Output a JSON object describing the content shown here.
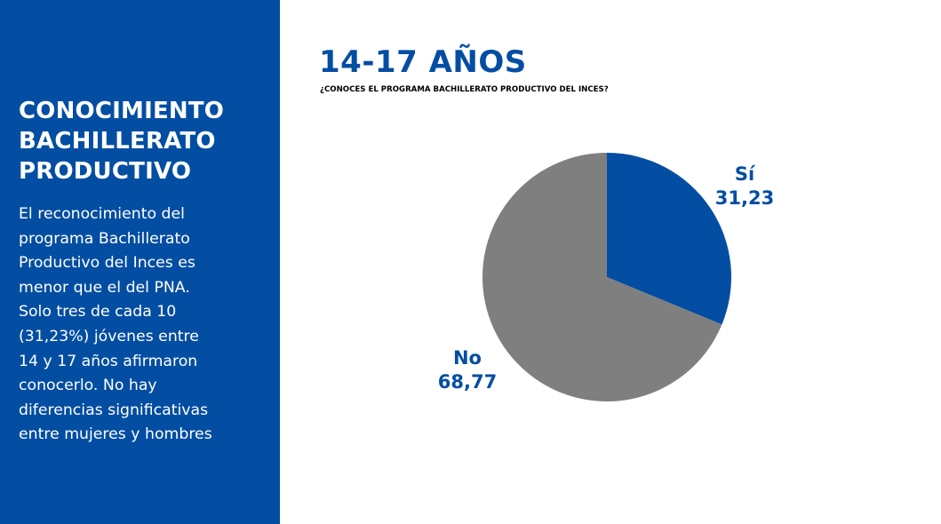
{
  "panel": {
    "title_lines": [
      "CONOCIMIENTO",
      "BACHILLERATO",
      "PRODUCTIVO"
    ],
    "body_lines": [
      "El reconocimiento del",
      "programa Bachillerato",
      "Productivo del Inces es",
      "menor que el del PNA.",
      "Solo tres de cada 10",
      "(31,23%) jóvenes entre",
      "14 y 17 años afirmaron",
      "conocerlo. No hay",
      "diferencias significativas",
      "entre mujeres y hombres"
    ]
  },
  "chart_data": {
    "type": "pie",
    "title": "14-17 AÑOS",
    "subtitle": "¿CONOCES EL PROGRAMA BACHILLERATO PRODUCTIVO DEL INCES?",
    "slices": [
      {
        "label": "Sí",
        "value": 31.23,
        "value_text": "31,23",
        "color": "#034ea2"
      },
      {
        "label": "No",
        "value": 68.77,
        "value_text": "68,77",
        "color": "#7f7f7f"
      }
    ],
    "start_angle": "12 o'clock",
    "direction": "clockwise"
  },
  "colors": {
    "panel_background": "#034ea2",
    "accent_text": "#034ea2",
    "page_background": "#ffffff"
  }
}
